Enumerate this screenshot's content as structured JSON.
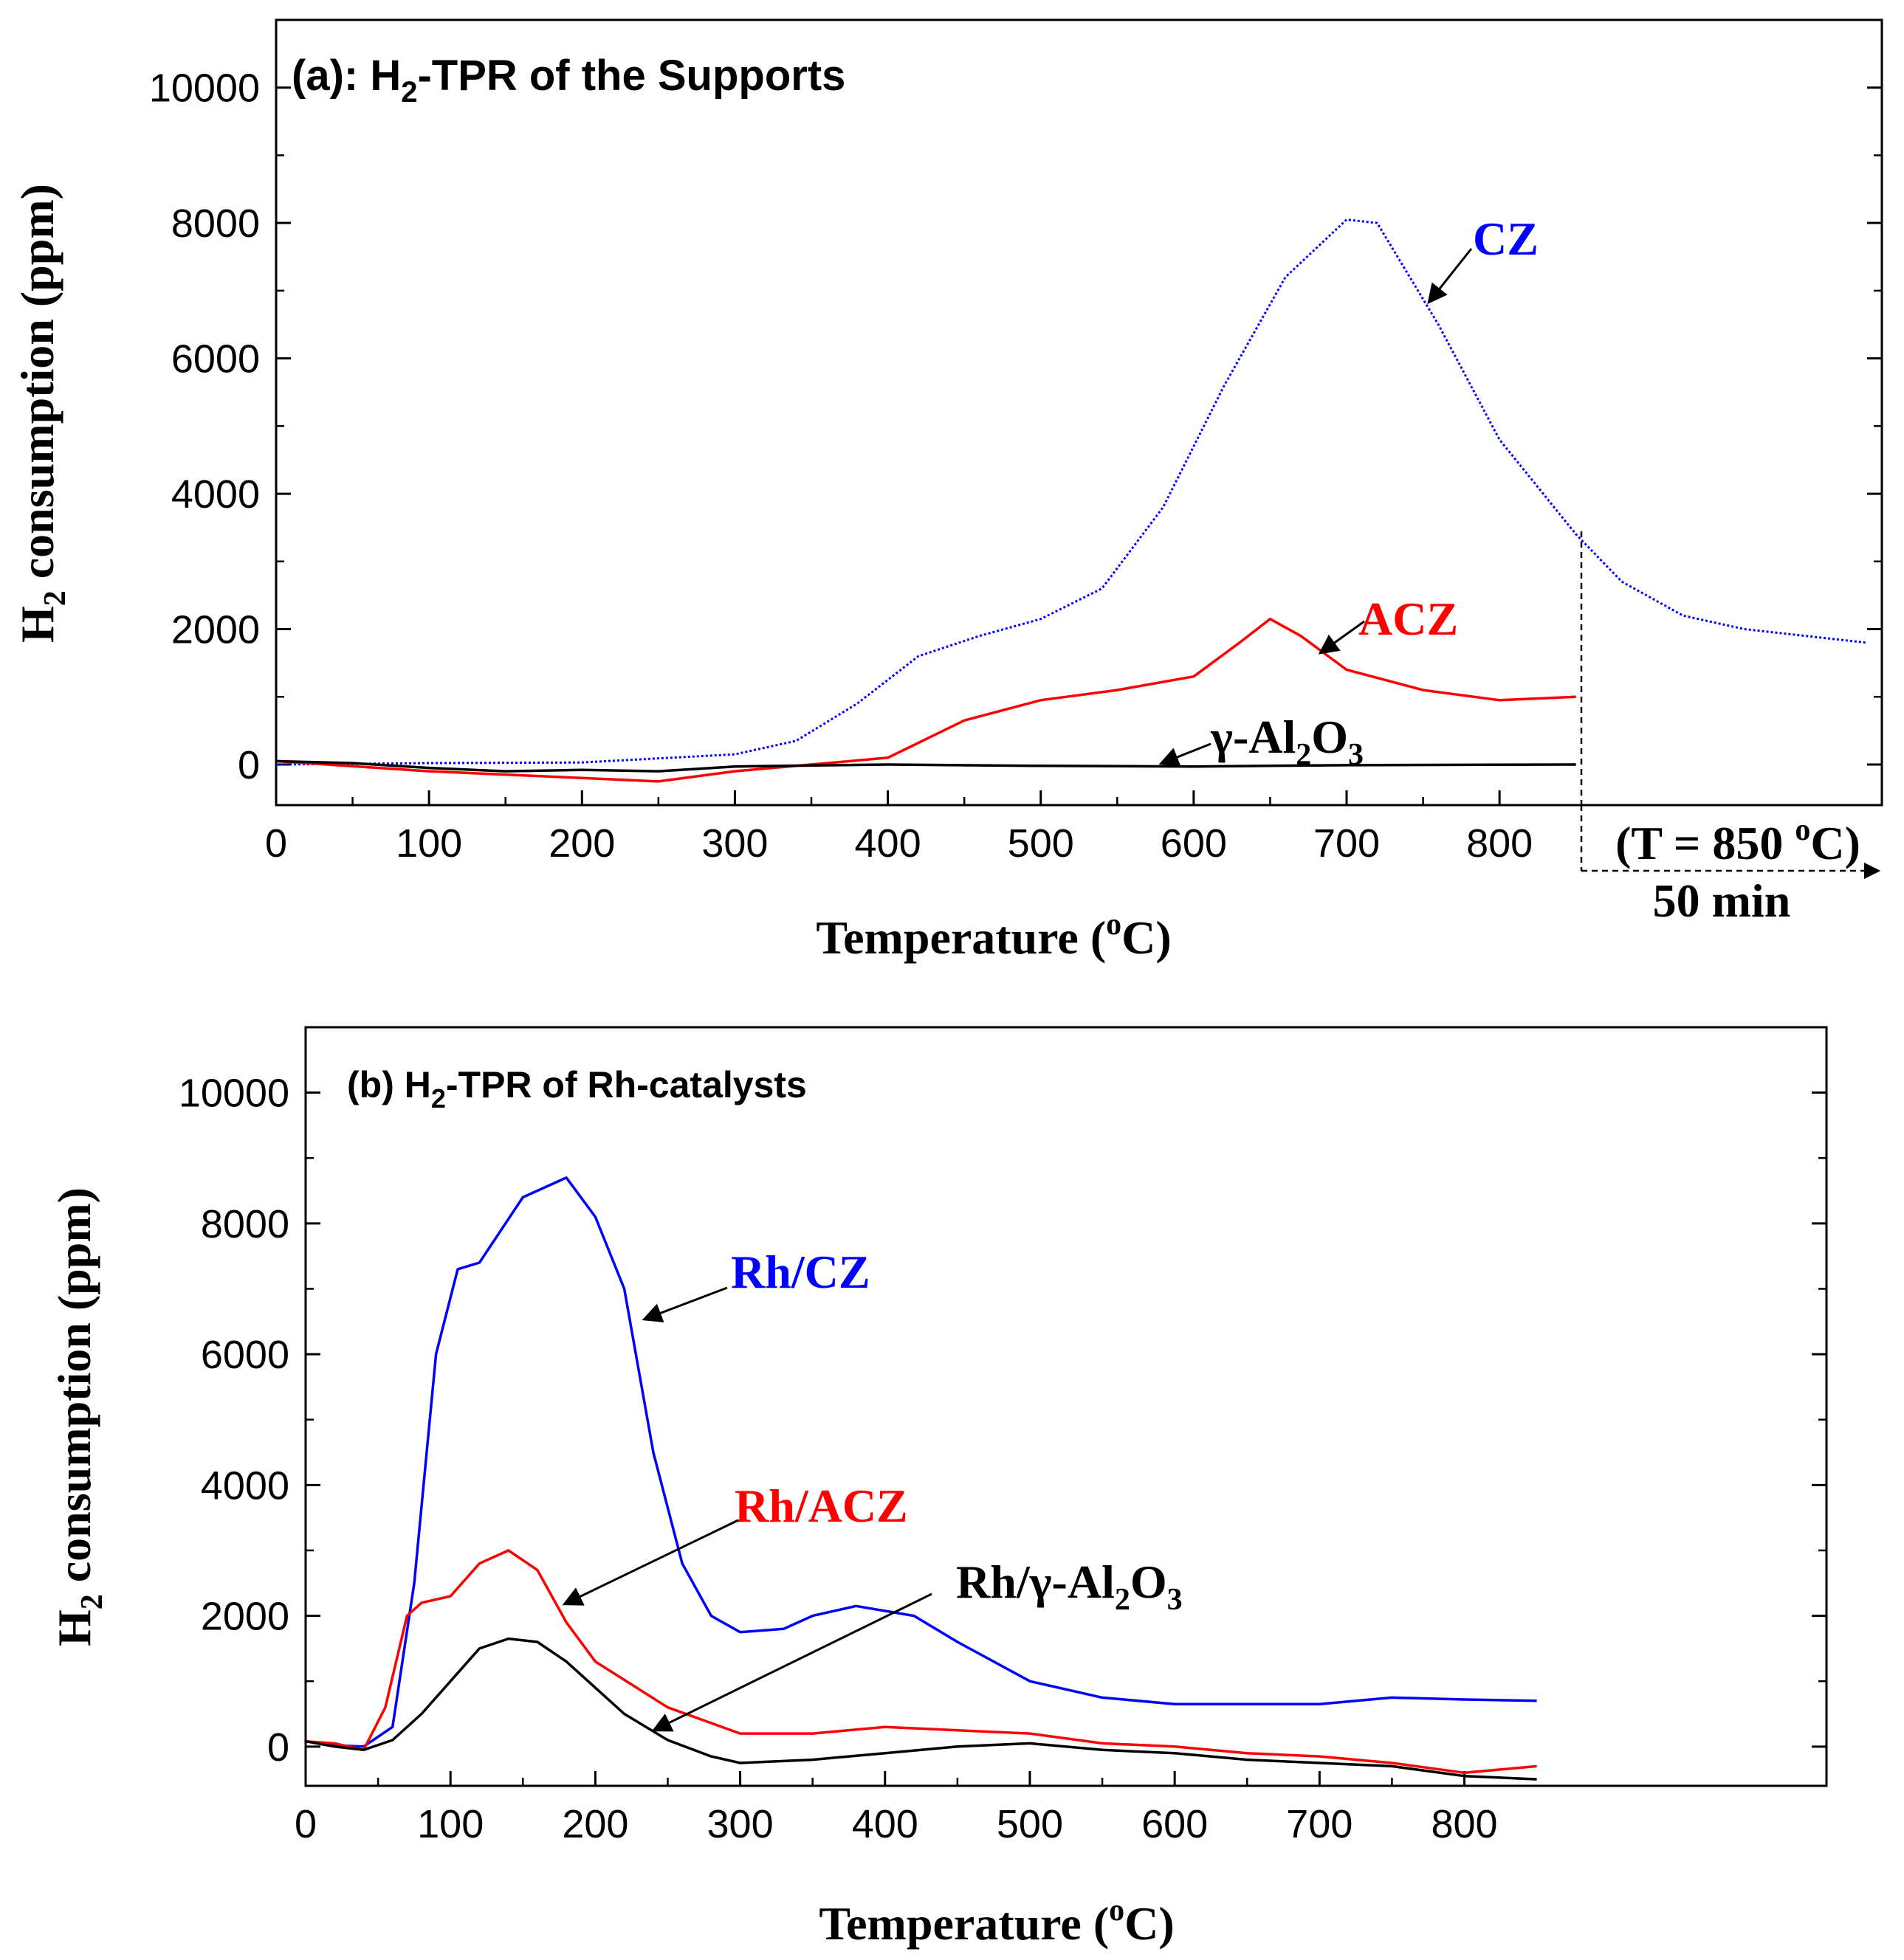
{
  "chart_data": [
    {
      "type": "line",
      "title": "(a): H2-TPR of the Supports",
      "xlabel": "Temperature (oC)",
      "ylabel": "H2 consumption (ppm)",
      "xlim": [
        0,
        1050
      ],
      "ylim": [
        -600,
        11000
      ],
      "xticks": [
        0,
        100,
        200,
        300,
        400,
        500,
        600,
        700,
        800
      ],
      "yticks": [
        0,
        2000,
        4000,
        6000,
        8000,
        10000
      ],
      "hold_annotation": {
        "text": "(T = 850 oC)",
        "duration": "50 min"
      },
      "series": [
        {
          "name": "CZ",
          "label": "CZ",
          "color": "#0000ff",
          "x": [
            0,
            100,
            200,
            300,
            340,
            380,
            420,
            460,
            500,
            540,
            580,
            620,
            660,
            700,
            720,
            760,
            800,
            850,
            880,
            920,
            960,
            1000,
            1040
          ],
          "y": [
            0,
            20,
            30,
            150,
            350,
            900,
            1600,
            1900,
            2150,
            2600,
            3800,
            5600,
            7200,
            8050,
            8000,
            6500,
            4800,
            3400,
            2700,
            2200,
            2000,
            1900,
            1800
          ]
        },
        {
          "name": "ACZ",
          "label": "ACZ",
          "color": "#ff0000",
          "x": [
            0,
            100,
            200,
            250,
            300,
            350,
            400,
            450,
            500,
            550,
            600,
            630,
            650,
            670,
            700,
            750,
            800,
            850
          ],
          "y": [
            50,
            -100,
            -200,
            -250,
            -100,
            0,
            100,
            650,
            950,
            1100,
            1300,
            1800,
            2150,
            1900,
            1400,
            1100,
            950,
            1000
          ]
        },
        {
          "name": "γ-Al2O3",
          "label": "γ-Al2O3",
          "color": "#000000",
          "x": [
            0,
            50,
            100,
            150,
            200,
            250,
            300,
            400,
            500,
            600,
            700,
            850
          ],
          "y": [
            50,
            20,
            -50,
            -100,
            -80,
            -100,
            -30,
            0,
            -20,
            -30,
            -10,
            0
          ]
        }
      ]
    },
    {
      "type": "line",
      "title": "(b) H2-TPR of Rh-catalysts",
      "xlabel": "Temperature (oC)",
      "ylabel": "H2 consumption (ppm)",
      "xlim": [
        0,
        1050
      ],
      "ylim": [
        -600,
        11000
      ],
      "xticks": [
        0,
        100,
        200,
        300,
        400,
        500,
        600,
        700,
        800
      ],
      "yticks": [
        0,
        2000,
        4000,
        6000,
        8000,
        10000
      ],
      "series": [
        {
          "name": "Rh/CZ",
          "label": "Rh/CZ",
          "color": "#0000ff",
          "x": [
            0,
            20,
            40,
            60,
            75,
            90,
            105,
            120,
            150,
            180,
            200,
            220,
            240,
            260,
            280,
            300,
            330,
            350,
            380,
            420,
            450,
            500,
            550,
            600,
            650,
            700,
            750,
            800,
            850
          ],
          "y": [
            80,
            20,
            0,
            300,
            2500,
            6000,
            7300,
            7400,
            8400,
            8700,
            8100,
            7000,
            4500,
            2800,
            2000,
            1750,
            1800,
            2000,
            2150,
            2000,
            1600,
            1000,
            750,
            650,
            650,
            650,
            750,
            720,
            700
          ]
        },
        {
          "name": "Rh/ACZ",
          "label": "Rh/ACZ",
          "color": "#ff0000",
          "x": [
            0,
            20,
            40,
            55,
            70,
            80,
            100,
            120,
            140,
            160,
            180,
            200,
            250,
            300,
            350,
            400,
            450,
            500,
            550,
            600,
            650,
            700,
            750,
            800,
            850
          ],
          "y": [
            80,
            50,
            -50,
            600,
            2000,
            2200,
            2300,
            2800,
            3000,
            2700,
            1900,
            1300,
            600,
            200,
            200,
            300,
            250,
            200,
            50,
            0,
            -100,
            -150,
            -250,
            -400,
            -300
          ]
        },
        {
          "name": "Rh/γ-Al2O3",
          "label": "Rh/γ-Al2O3",
          "color": "#000000",
          "x": [
            0,
            20,
            40,
            60,
            80,
            100,
            120,
            140,
            160,
            180,
            200,
            220,
            250,
            280,
            300,
            350,
            400,
            450,
            500,
            550,
            600,
            650,
            700,
            750,
            800,
            850
          ],
          "y": [
            80,
            0,
            -50,
            100,
            500,
            1000,
            1500,
            1650,
            1600,
            1300,
            900,
            500,
            100,
            -150,
            -250,
            -200,
            -100,
            0,
            50,
            -50,
            -100,
            -200,
            -250,
            -300,
            -450,
            -500
          ]
        }
      ]
    }
  ]
}
